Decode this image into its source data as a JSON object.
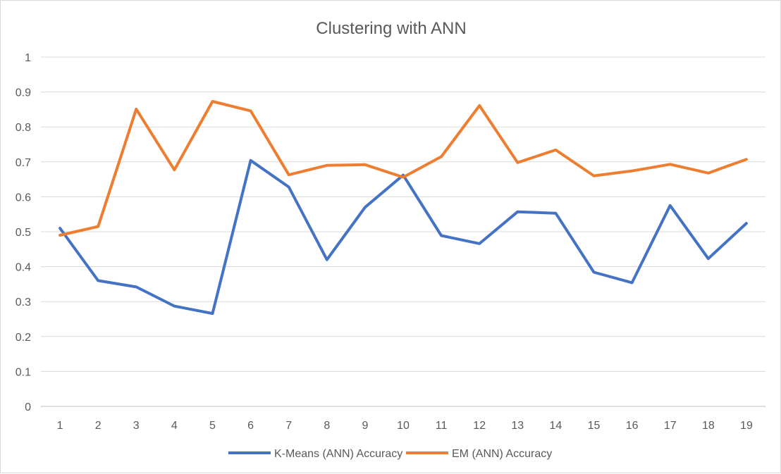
{
  "chart_data": {
    "type": "line",
    "title": "Clustering with ANN",
    "xlabel": "",
    "ylabel": "",
    "x": [
      1,
      2,
      3,
      4,
      5,
      6,
      7,
      8,
      9,
      10,
      11,
      12,
      13,
      14,
      15,
      16,
      17,
      18,
      19
    ],
    "ylim": [
      0,
      1
    ],
    "yticks": [
      "0",
      "0.1",
      "0.2",
      "0.3",
      "0.4",
      "0.5",
      "0.6",
      "0.7",
      "0.8",
      "0.9",
      "1"
    ],
    "grid": true,
    "legend_position": "bottom",
    "series": [
      {
        "name": "K-Means (ANN) Accuracy",
        "color": "#4472c4",
        "values": [
          0.51,
          0.36,
          0.342,
          0.287,
          0.266,
          0.704,
          0.628,
          0.42,
          0.57,
          0.662,
          0.489,
          0.466,
          0.557,
          0.553,
          0.384,
          0.354,
          0.575,
          0.423,
          0.524
        ]
      },
      {
        "name": "EM (ANN) Accuracy",
        "color": "#ed7d31",
        "values": [
          0.49,
          0.515,
          0.851,
          0.677,
          0.873,
          0.846,
          0.663,
          0.69,
          0.692,
          0.656,
          0.715,
          0.861,
          0.698,
          0.734,
          0.66,
          0.674,
          0.693,
          0.668,
          0.707
        ]
      }
    ]
  }
}
